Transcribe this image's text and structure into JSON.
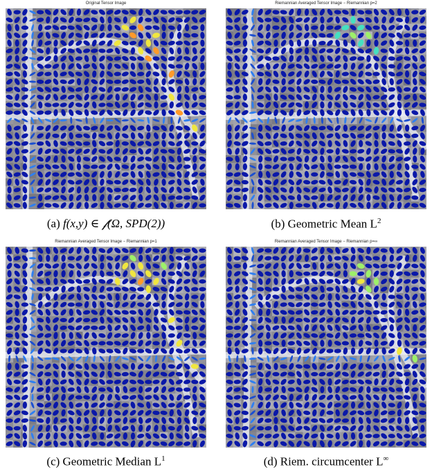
{
  "figure": {
    "panels": [
      {
        "id": "a",
        "plot_title": "Original Tensor Image",
        "caption_label": "(a)",
        "caption_text": "f(x,y) ∈ 𝒻(Ω, SPD(2))",
        "hot_level": 1.0,
        "hot_cells": [
          [
            15,
            2
          ],
          [
            16,
            1
          ],
          [
            16,
            3
          ],
          [
            17,
            2
          ],
          [
            18,
            4
          ],
          [
            18,
            6
          ],
          [
            19,
            3
          ],
          [
            19,
            5
          ],
          [
            14,
            4
          ],
          [
            17,
            5
          ],
          [
            21,
            8
          ],
          [
            21,
            11
          ],
          [
            22,
            13
          ],
          [
            24,
            15
          ]
        ]
      },
      {
        "id": "b",
        "plot_title": "Riemannian Averaged Tensor Image − Riemannian p=2",
        "caption_label": "(b)",
        "caption_text": "Geometric Mean L",
        "caption_sup": "2",
        "hot_level": 0.45,
        "hot_cells": [
          [
            15,
            2
          ],
          [
            16,
            1
          ],
          [
            16,
            3
          ],
          [
            17,
            2
          ],
          [
            17,
            4
          ],
          [
            18,
            3
          ],
          [
            19,
            5
          ],
          [
            14,
            3
          ]
        ]
      },
      {
        "id": "c",
        "plot_title": "Riemannian Averaged Tensor Image − Riemannian p=1",
        "caption_label": "(c)",
        "caption_text": "Geometric Median L",
        "caption_sup": "1",
        "hot_level": 0.85,
        "hot_cells": [
          [
            15,
            2
          ],
          [
            16,
            1
          ],
          [
            16,
            3
          ],
          [
            17,
            2
          ],
          [
            17,
            4
          ],
          [
            18,
            3
          ],
          [
            18,
            5
          ],
          [
            19,
            4
          ],
          [
            14,
            4
          ],
          [
            20,
            2
          ],
          [
            21,
            9
          ],
          [
            22,
            12
          ],
          [
            24,
            15
          ]
        ]
      },
      {
        "id": "d",
        "plot_title": "Riemannian Averaged Tensor Image − Riemannian p=∞",
        "caption_label": "(d)",
        "caption_text": "Riem. circumcenter L",
        "caption_sup": "∞",
        "hot_level": 0.7,
        "hot_cells": [
          [
            16,
            3
          ],
          [
            17,
            2
          ],
          [
            17,
            4
          ],
          [
            18,
            3
          ],
          [
            18,
            5
          ],
          [
            19,
            4
          ],
          [
            22,
            13
          ],
          [
            24,
            14
          ]
        ]
      }
    ]
  }
}
